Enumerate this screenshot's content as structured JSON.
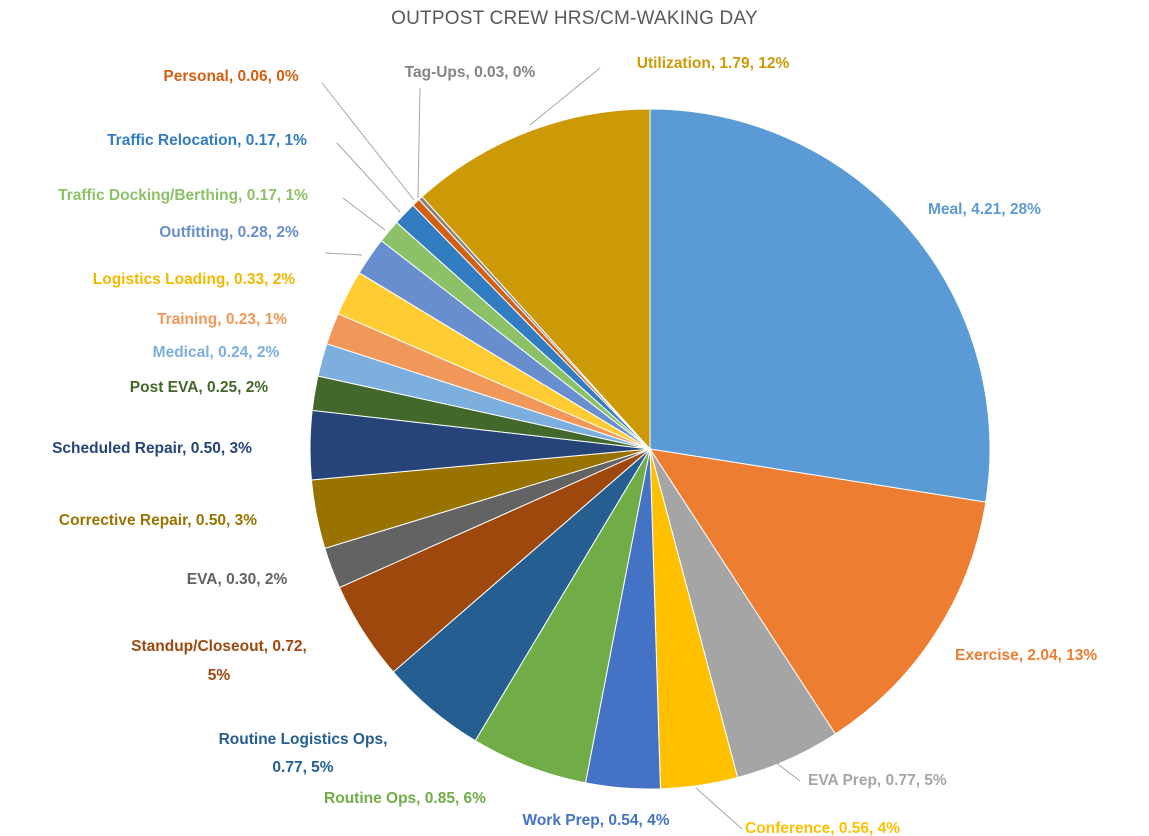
{
  "chart_data": {
    "type": "pie",
    "title": "OUTPOST CREW HRS/CM-WAKING DAY",
    "slices": [
      {
        "name": "Meal",
        "value": 4.21,
        "percent": "28%",
        "color": "#5B9BD5",
        "label": "Meal, 4.21, 28%"
      },
      {
        "name": "Exercise",
        "value": 2.04,
        "percent": "13%",
        "color": "#ED7D31",
        "label": "Exercise, 2.04, 13%"
      },
      {
        "name": "EVA Prep",
        "value": 0.77,
        "percent": "5%",
        "color": "#A5A5A5",
        "label": "EVA Prep, 0.77, 5%"
      },
      {
        "name": "Conference",
        "value": 0.56,
        "percent": "4%",
        "color": "#FFC000",
        "label": "Conference, 0.56, 4%"
      },
      {
        "name": "Work Prep",
        "value": 0.54,
        "percent": "4%",
        "color": "#4472C4",
        "label": "Work Prep, 0.54, 4%"
      },
      {
        "name": "Routine Ops",
        "value": 0.85,
        "percent": "6%",
        "color": "#70AD47",
        "label": "Routine Ops, 0.85, 6%"
      },
      {
        "name": "Routine Logistics Ops",
        "value": 0.77,
        "percent": "5%",
        "color": "#255E91",
        "label": "Routine Logistics Ops,\n0.77, 5%"
      },
      {
        "name": "Standup/Closeout",
        "value": 0.72,
        "percent": "5%",
        "color": "#9E480E",
        "label": "Standup/Closeout, 0.72,\n5%"
      },
      {
        "name": "EVA",
        "value": 0.3,
        "percent": "2%",
        "color": "#636363",
        "label": "EVA, 0.30, 2%"
      },
      {
        "name": "Corrective Repair",
        "value": 0.5,
        "percent": "3%",
        "color": "#997300",
        "label": "Corrective Repair, 0.50, 3%"
      },
      {
        "name": "Scheduled Repair",
        "value": 0.5,
        "percent": "3%",
        "color": "#264478",
        "label": "Scheduled Repair, 0.50, 3%"
      },
      {
        "name": "Post EVA",
        "value": 0.25,
        "percent": "2%",
        "color": "#43682B",
        "label": "Post EVA, 0.25, 2%"
      },
      {
        "name": "Medical",
        "value": 0.24,
        "percent": "2%",
        "color": "#7CAFDD",
        "label": "Medical, 0.24, 2%"
      },
      {
        "name": "Training",
        "value": 0.23,
        "percent": "1%",
        "color": "#F1975A",
        "label": "Training, 0.23, 1%"
      },
      {
        "name": "Logistics Loading",
        "value": 0.33,
        "percent": "2%",
        "color": "#FFCD33",
        "label": "Logistics Loading, 0.33, 2%"
      },
      {
        "name": "Outfitting",
        "value": 0.28,
        "percent": "2%",
        "color": "#698ED0",
        "label": "Outfitting, 0.28, 2%"
      },
      {
        "name": "Traffic Docking/Berthing",
        "value": 0.17,
        "percent": "1%",
        "color": "#8CC168",
        "label": "Traffic Docking/Berthing, 0.17, 1%"
      },
      {
        "name": "Traffic Relocation",
        "value": 0.17,
        "percent": "1%",
        "color": "#327DC2",
        "label": "Traffic Relocation, 0.17, 1%"
      },
      {
        "name": "Personal",
        "value": 0.06,
        "percent": "0%",
        "color": "#D26012",
        "label": "Personal, 0.06, 0%"
      },
      {
        "name": "Tag-Ups",
        "value": 0.03,
        "percent": "0%",
        "color": "#848484",
        "label": "Tag-Ups, 0.03, 0%"
      },
      {
        "name": "Utilization",
        "value": 1.79,
        "percent": "12%",
        "color": "#CC9A06",
        "label": "Utilization, 1.79, 12%"
      }
    ]
  }
}
